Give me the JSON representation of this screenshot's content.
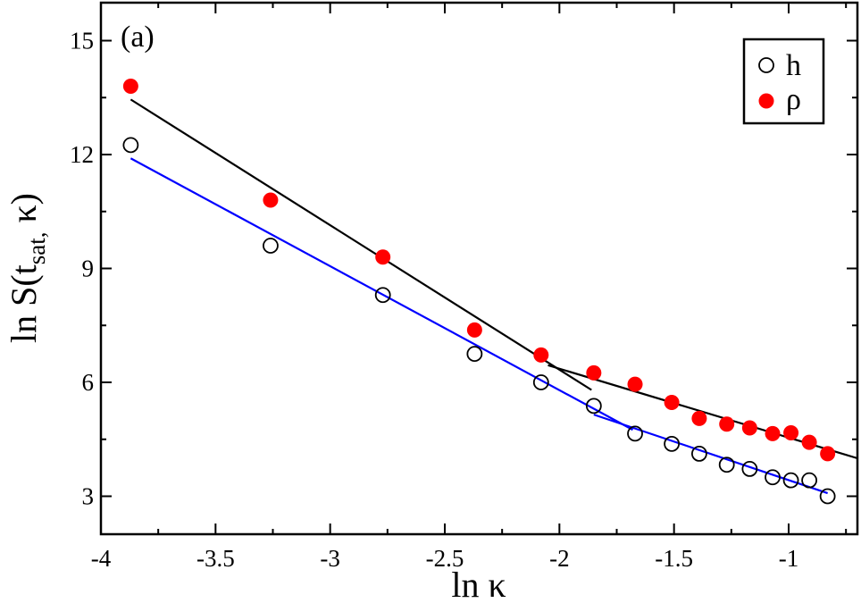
{
  "chart_data": {
    "type": "scatter",
    "panel_label": "(a)",
    "xlabel": "ln κ",
    "ylabel": {
      "prefix": "ln S(t",
      "subscript": "sat,",
      "suffix": " κ)"
    },
    "xlim": [
      -4,
      -0.7
    ],
    "ylim": [
      2,
      16
    ],
    "xticks": [
      -4,
      -3.5,
      -3,
      -2.5,
      -2,
      -1.5,
      -1
    ],
    "xtick_labels": [
      "-4",
      "-3.5",
      "-3",
      "-2.5",
      "-2",
      "-1.5",
      "-1"
    ],
    "yticks": [
      3,
      6,
      9,
      12,
      15
    ],
    "ytick_labels": [
      "3",
      "6",
      "9",
      "12",
      "15"
    ],
    "legend_position": "top-right",
    "series": [
      {
        "name": "h",
        "marker": "open-circle",
        "color": "#000000",
        "x": [
          -3.87,
          -3.26,
          -2.77,
          -2.37,
          -2.08,
          -1.85,
          -1.67,
          -1.51,
          -1.39,
          -1.27,
          -1.17,
          -1.07,
          -0.99,
          -0.91,
          -0.83
        ],
        "y": [
          12.25,
          9.6,
          8.3,
          6.75,
          6.0,
          5.38,
          4.65,
          4.38,
          4.12,
          3.83,
          3.72,
          3.5,
          3.42,
          3.42,
          3.0
        ]
      },
      {
        "name": "ρ",
        "marker": "filled-circle",
        "color": "#ff0000",
        "x": [
          -3.87,
          -3.26,
          -2.77,
          -2.37,
          -2.08,
          -1.85,
          -1.67,
          -1.51,
          -1.39,
          -1.27,
          -1.17,
          -1.07,
          -0.99,
          -0.91,
          -0.83
        ],
        "y": [
          13.8,
          10.8,
          9.3,
          7.38,
          6.72,
          6.25,
          5.95,
          5.47,
          5.05,
          4.9,
          4.8,
          4.65,
          4.67,
          4.42,
          4.12
        ]
      }
    ],
    "fit_lines": [
      {
        "color": "#000000",
        "points": [
          [
            -3.87,
            13.45
          ],
          [
            -1.86,
            5.8
          ]
        ]
      },
      {
        "color": "#000000",
        "points": [
          [
            -2.05,
            6.45
          ],
          [
            -0.7,
            4.0
          ]
        ]
      },
      {
        "color": "#0000ff",
        "points": [
          [
            -3.87,
            11.9
          ],
          [
            -1.68,
            4.75
          ]
        ]
      },
      {
        "color": "#0000ff",
        "points": [
          [
            -1.85,
            5.15
          ],
          [
            -0.83,
            3.08
          ]
        ]
      }
    ]
  }
}
